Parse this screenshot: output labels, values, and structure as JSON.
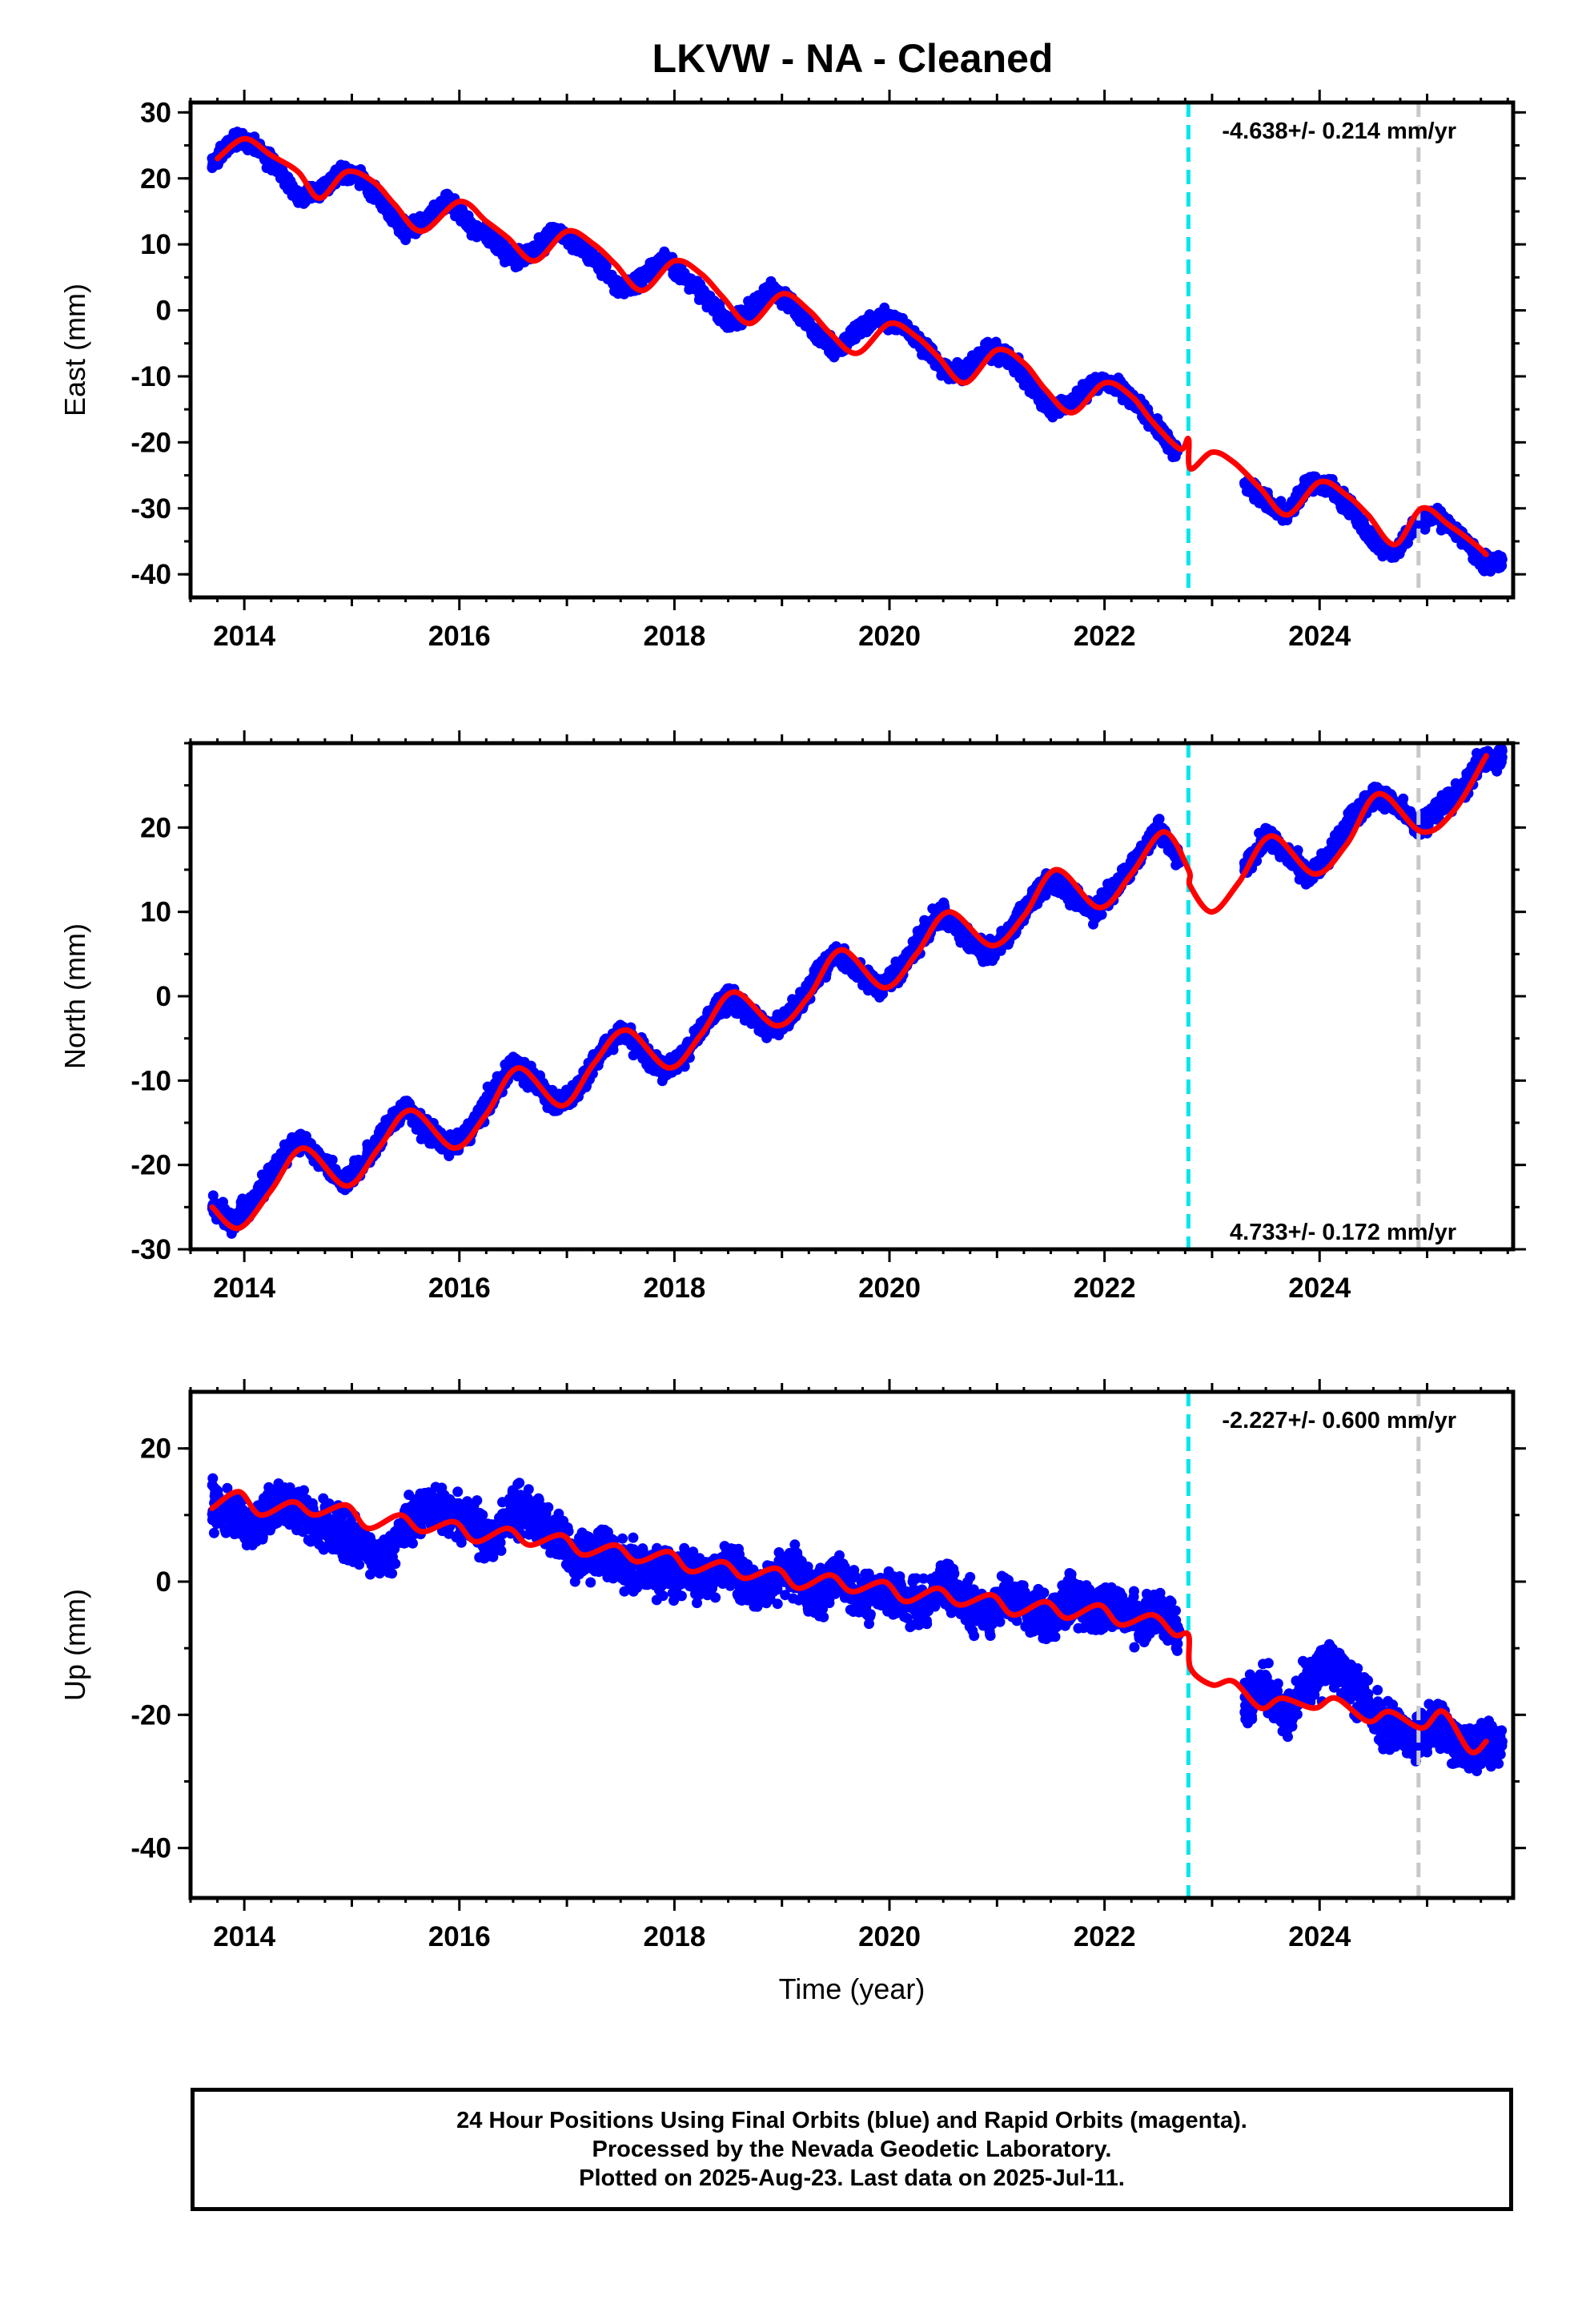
{
  "title": "LKVW  - NA - Cleaned",
  "footer": {
    "lines": [
      "24 Hour Positions Using Final Orbits (blue) and Rapid Orbits (magenta).",
      "Processed by the Nevada Geodetic Laboratory.",
      "Plotted on 2025-Aug-23. Last data on 2025-Jul-11."
    ]
  },
  "colors": {
    "data_points": "#0000ff",
    "model_fit": "#ff0000",
    "equipment_change": "#00e5ee",
    "other_event": "#c8c8c8"
  },
  "chart_data": [
    {
      "type": "scatter",
      "component": "east",
      "ylabel": "East (mm)",
      "xlabel": "",
      "xlim": [
        2013.5,
        2025.8
      ],
      "ylim": [
        -43.5,
        31.5
      ],
      "xticks": [
        2014,
        2016,
        2018,
        2020,
        2022,
        2024
      ],
      "yticks": [
        -40,
        -30,
        -20,
        -10,
        0,
        10,
        20,
        30
      ],
      "rate_label": "-4.638+/- 0.214 mm/yr",
      "rate_position": "top-right",
      "events": [
        {
          "x": 2022.78,
          "kind": "equipment_change"
        },
        {
          "x": 2024.92,
          "kind": "other_event"
        }
      ],
      "series": [
        {
          "kind": "observations",
          "x": [
            2013.7,
            2013.9,
            2014.1,
            2014.3,
            2014.5,
            2014.7,
            2014.9,
            2015.1,
            2015.3,
            2015.5,
            2015.7,
            2015.9,
            2016.1,
            2016.3,
            2016.5,
            2016.7,
            2016.9,
            2017.1,
            2017.3,
            2017.5,
            2017.7,
            2017.9,
            2018.1,
            2018.3,
            2018.5,
            2018.7,
            2018.9,
            2019.1,
            2019.3,
            2019.5,
            2019.7,
            2019.9,
            2020.1,
            2020.3,
            2020.5,
            2020.7,
            2020.9,
            2021.1,
            2021.3,
            2021.5,
            2021.7,
            2021.9,
            2022.1,
            2022.3,
            2022.5,
            2022.7,
            2023.3,
            2023.5,
            2023.7,
            2023.9,
            2024.1,
            2024.3,
            2024.5,
            2024.7,
            2024.9,
            2025.1,
            2025.3,
            2025.5
          ],
          "y": [
            22,
            26,
            25,
            22,
            17,
            18,
            21,
            20,
            16,
            12,
            14,
            17,
            13,
            11,
            8,
            9,
            12,
            10,
            7,
            3,
            5,
            8,
            5,
            2,
            -2,
            0,
            3,
            1,
            -3,
            -6,
            -3,
            -1,
            -2,
            -5,
            -9,
            -9,
            -6,
            -7,
            -11,
            -15,
            -14,
            -11,
            -11,
            -14,
            -18,
            -22,
            -26,
            -29,
            -31,
            -26,
            -27,
            -30,
            -35,
            -37,
            -32,
            -31,
            -34,
            -38
          ]
        },
        {
          "kind": "model",
          "x": [
            2013.75,
            2014.0,
            2014.25,
            2014.5,
            2014.7,
            2014.95,
            2015.2,
            2015.4,
            2015.65,
            2016.0,
            2016.25,
            2016.45,
            2016.7,
            2017.0,
            2017.25,
            2017.45,
            2017.7,
            2018.0,
            2018.25,
            2018.45,
            2018.7,
            2019.0,
            2019.25,
            2019.45,
            2019.7,
            2020.0,
            2020.25,
            2020.45,
            2020.7,
            2021.0,
            2021.25,
            2021.45,
            2021.7,
            2022.0,
            2022.25,
            2022.45,
            2022.7,
            2022.78,
            2022.8,
            2023.0,
            2023.2,
            2023.45,
            2023.7,
            2024.0,
            2024.25,
            2024.45,
            2024.7,
            2024.95,
            2025.2,
            2025.45,
            2025.55
          ],
          "y": [
            23,
            26,
            23.5,
            21,
            17,
            21,
            19.5,
            16,
            12,
            16.5,
            13.5,
            11,
            7.5,
            12,
            10,
            7,
            3,
            7.5,
            5.5,
            2,
            -2,
            2.5,
            0,
            -3.5,
            -6.5,
            -2,
            -4,
            -7,
            -11,
            -6,
            -8,
            -12,
            -15.5,
            -11,
            -13,
            -17,
            -21,
            -19.5,
            -24,
            -21.5,
            -23,
            -27,
            -31,
            -26,
            -28,
            -31,
            -35.5,
            -30,
            -32.5,
            -35.5,
            -37
          ]
        }
      ]
    },
    {
      "type": "scatter",
      "component": "north",
      "ylabel": "North (mm)",
      "xlabel": "",
      "xlim": [
        2013.5,
        2025.8
      ],
      "ylim": [
        -30,
        30
      ],
      "xticks": [
        2014,
        2016,
        2018,
        2020,
        2022,
        2024
      ],
      "yticks": [
        -30,
        -20,
        -10,
        0,
        10,
        20
      ],
      "rate_label": "4.733+/- 0.172 mm/yr",
      "rate_position": "bottom-right",
      "events": [
        {
          "x": 2022.78,
          "kind": "equipment_change"
        },
        {
          "x": 2024.92,
          "kind": "other_event"
        }
      ],
      "series": [
        {
          "kind": "observations",
          "x": [
            2013.7,
            2013.9,
            2014.1,
            2014.3,
            2014.5,
            2014.7,
            2014.9,
            2015.1,
            2015.3,
            2015.5,
            2015.7,
            2015.9,
            2016.1,
            2016.3,
            2016.5,
            2016.7,
            2016.9,
            2017.1,
            2017.3,
            2017.5,
            2017.7,
            2017.9,
            2018.1,
            2018.3,
            2018.5,
            2018.7,
            2018.9,
            2019.1,
            2019.3,
            2019.5,
            2019.7,
            2019.9,
            2020.1,
            2020.3,
            2020.5,
            2020.7,
            2020.9,
            2021.1,
            2021.3,
            2021.5,
            2021.7,
            2021.9,
            2022.1,
            2022.3,
            2022.5,
            2022.7,
            2023.3,
            2023.5,
            2023.7,
            2023.9,
            2024.1,
            2024.3,
            2024.5,
            2024.7,
            2024.9,
            2025.1,
            2025.3,
            2025.5
          ],
          "y": [
            -25,
            -27,
            -24,
            -20,
            -17,
            -19,
            -22,
            -20,
            -16,
            -13,
            -16,
            -18,
            -16,
            -12,
            -8,
            -10,
            -13,
            -11,
            -7,
            -4,
            -6,
            -9,
            -7,
            -3,
            0,
            -2,
            -4,
            -2,
            2,
            5,
            3,
            1,
            3,
            7,
            10,
            7,
            5,
            7,
            11,
            14,
            12,
            10,
            13,
            16,
            20,
            16,
            15,
            19,
            17,
            14,
            17,
            21,
            24,
            23,
            20,
            22,
            24,
            28
          ]
        },
        {
          "kind": "model",
          "x": [
            2013.7,
            2013.95,
            2014.25,
            2014.55,
            2014.95,
            2015.25,
            2015.55,
            2015.95,
            2016.25,
            2016.55,
            2016.95,
            2017.25,
            2017.55,
            2017.95,
            2018.25,
            2018.55,
            2018.95,
            2019.25,
            2019.55,
            2019.95,
            2020.25,
            2020.55,
            2020.95,
            2021.25,
            2021.55,
            2021.95,
            2022.25,
            2022.55,
            2022.78,
            2022.8,
            2023.0,
            2023.25,
            2023.55,
            2023.95,
            2024.25,
            2024.55,
            2024.95,
            2025.25,
            2025.55
          ],
          "y": [
            -25,
            -27.5,
            -23,
            -18,
            -22.5,
            -18,
            -13.5,
            -18,
            -14,
            -8.5,
            -13,
            -8,
            -4,
            -8.5,
            -4.5,
            0.5,
            -3.5,
            0,
            5.5,
            1,
            5,
            10,
            6,
            9.5,
            15,
            10.5,
            14.5,
            19.5,
            15,
            13,
            10,
            13.5,
            19,
            14.5,
            18,
            24,
            19.5,
            22,
            28.5
          ]
        }
      ]
    },
    {
      "type": "scatter",
      "component": "up",
      "ylabel": "Up (mm)",
      "xlabel": "Time (year)",
      "xlim": [
        2013.5,
        2025.8
      ],
      "ylim": [
        -47.5,
        28.5
      ],
      "xticks": [
        2014,
        2016,
        2018,
        2020,
        2022,
        2024
      ],
      "yticks": [
        -40,
        -20,
        0,
        20
      ],
      "rate_label": "-2.227+/- 0.600 mm/yr",
      "rate_position": "top-right",
      "events": [
        {
          "x": 2022.78,
          "kind": "equipment_change"
        },
        {
          "x": 2024.92,
          "kind": "other_event"
        }
      ],
      "series": [
        {
          "kind": "observations",
          "x": [
            2013.7,
            2013.9,
            2014.1,
            2014.3,
            2014.5,
            2014.7,
            2014.9,
            2015.1,
            2015.3,
            2015.5,
            2015.7,
            2015.9,
            2016.1,
            2016.3,
            2016.5,
            2016.7,
            2016.9,
            2017.1,
            2017.3,
            2017.5,
            2017.7,
            2017.9,
            2018.1,
            2018.3,
            2018.5,
            2018.7,
            2018.9,
            2019.1,
            2019.3,
            2019.5,
            2019.7,
            2019.9,
            2020.1,
            2020.3,
            2020.5,
            2020.7,
            2020.9,
            2021.1,
            2021.3,
            2021.5,
            2021.7,
            2021.9,
            2022.1,
            2022.3,
            2022.5,
            2022.7,
            2023.3,
            2023.5,
            2023.7,
            2023.9,
            2024.1,
            2024.3,
            2024.5,
            2024.7,
            2024.9,
            2025.1,
            2025.3,
            2025.5
          ],
          "y": [
            12,
            10,
            8,
            12,
            11,
            9,
            7,
            6,
            3,
            8,
            12,
            10,
            9,
            6,
            11,
            10,
            7,
            3,
            5,
            2,
            3,
            1,
            2,
            0,
            3,
            -1,
            0,
            2,
            -2,
            1,
            -3,
            -1,
            -2,
            -4,
            0,
            -3,
            -5,
            -2,
            -4,
            -6,
            -2,
            -5,
            -3,
            -6,
            -4,
            -8,
            -18,
            -16,
            -20,
            -14,
            -12,
            -15,
            -20,
            -22,
            -24,
            -21,
            -25,
            -24
          ]
        },
        {
          "kind": "model",
          "x": [
            2013.7,
            2013.95,
            2014.15,
            2014.45,
            2014.65,
            2014.95,
            2015.15,
            2015.45,
            2015.65,
            2015.95,
            2016.15,
            2016.45,
            2016.65,
            2016.95,
            2017.15,
            2017.45,
            2017.65,
            2017.95,
            2018.15,
            2018.45,
            2018.65,
            2018.95,
            2019.15,
            2019.45,
            2019.65,
            2019.95,
            2020.15,
            2020.45,
            2020.65,
            2020.95,
            2021.15,
            2021.45,
            2021.65,
            2021.95,
            2022.15,
            2022.45,
            2022.65,
            2022.78,
            2022.8,
            2023.0,
            2023.2,
            2023.45,
            2023.65,
            2023.95,
            2024.15,
            2024.45,
            2024.65,
            2024.95,
            2025.15,
            2025.4,
            2025.55
          ],
          "y": [
            11,
            13.5,
            10,
            12,
            10,
            11.5,
            8,
            10,
            7.5,
            9,
            6,
            8,
            5.5,
            7,
            4,
            5.5,
            3,
            4.5,
            1.5,
            3,
            0.5,
            2,
            -1,
            1,
            -1.5,
            0,
            -3,
            -1,
            -3.5,
            -2,
            -5,
            -3,
            -5.5,
            -3.5,
            -6.5,
            -5,
            -8,
            -8,
            -13,
            -15.5,
            -15,
            -19,
            -17.5,
            -19,
            -17.5,
            -21,
            -19.5,
            -22,
            -19.5,
            -25.5,
            -24
          ]
        }
      ]
    }
  ]
}
